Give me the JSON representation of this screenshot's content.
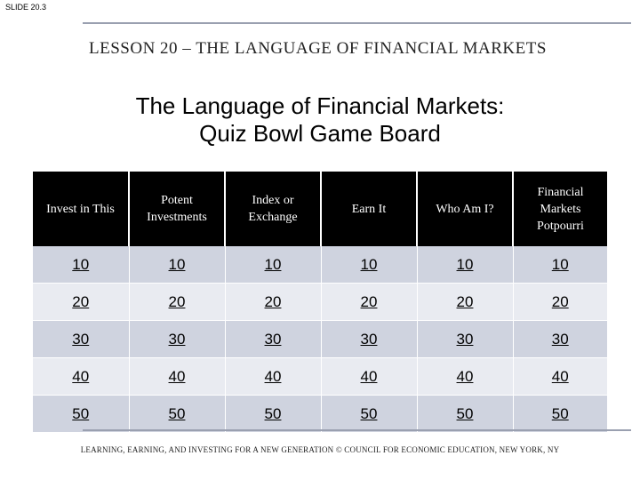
{
  "slide_number": "SLIDE 20.3",
  "lesson_title": "LESSON 20 – THE LANGUAGE OF FINANCIAL MARKETS",
  "main_title": {
    "line1": "The Language of Financial Markets:",
    "line2": "Quiz Bowl Game Board"
  },
  "board": {
    "categories": [
      "Invest in This",
      "Potent Investments",
      "Index or Exchange",
      "Earn It",
      "Who Am I?",
      "Financial Markets Potpourri"
    ],
    "point_rows": [
      "10",
      "20",
      "30",
      "40",
      "50"
    ]
  },
  "footer": "LEARNING, EARNING, AND INVESTING FOR A NEW GENERATION © COUNCIL FOR ECONOMIC EDUCATION, NEW YORK, NY",
  "colors": {
    "header_bg": "#000000",
    "row_dark": "#cfd3df",
    "row_light": "#e9ebf1",
    "rule": "#9aa0b0"
  }
}
